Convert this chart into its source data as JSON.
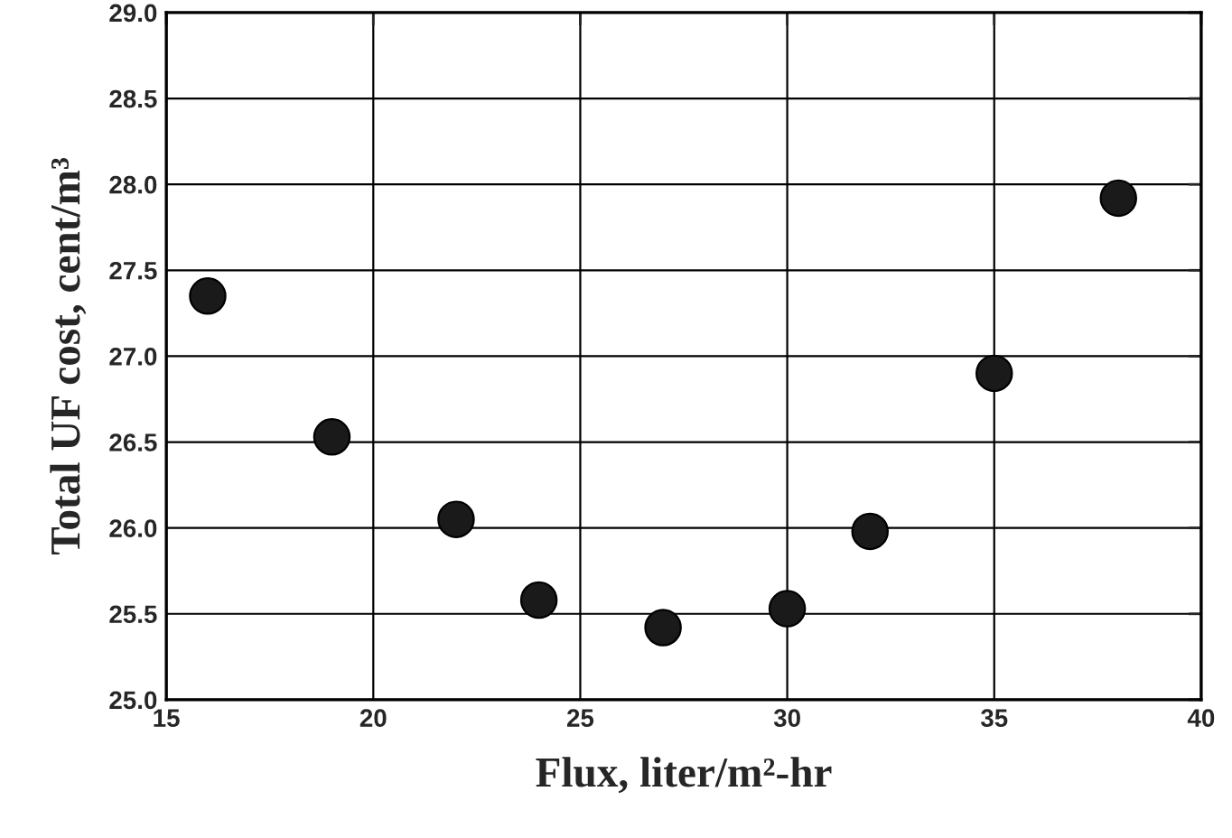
{
  "chart_data": {
    "type": "scatter",
    "xlabel": "Flux, liter/m²-hr",
    "ylabel": "Total UF cost, cent/m³",
    "x": [
      16,
      19,
      22,
      24,
      27,
      30,
      32,
      35,
      38
    ],
    "series": [
      {
        "color": "#1a1a1a",
        "values": [
          27.35,
          26.53,
          26.05,
          25.58,
          25.42,
          25.53,
          25.98,
          26.9,
          27.92
        ]
      }
    ],
    "xlim": [
      15,
      40
    ],
    "xticks": [
      15,
      20,
      25,
      30,
      35,
      40
    ],
    "ylim": [
      25.0,
      29.0
    ],
    "yticks": [
      {
        "value": 25.0,
        "label": "25.0"
      },
      {
        "value": 25.5,
        "label": "25.5"
      },
      {
        "value": 26.0,
        "label": "26.0"
      },
      {
        "value": 26.5,
        "label": "26.5"
      },
      {
        "value": 27.0,
        "label": "27.0"
      },
      {
        "value": 27.5,
        "label": "27.5"
      },
      {
        "value": 28.0,
        "label": "28.0"
      },
      {
        "value": 28.5,
        "label": "28.5"
      },
      {
        "value": 29.0,
        "label": "29.0"
      }
    ],
    "grid": true,
    "marker": "circle",
    "legend": false
  }
}
